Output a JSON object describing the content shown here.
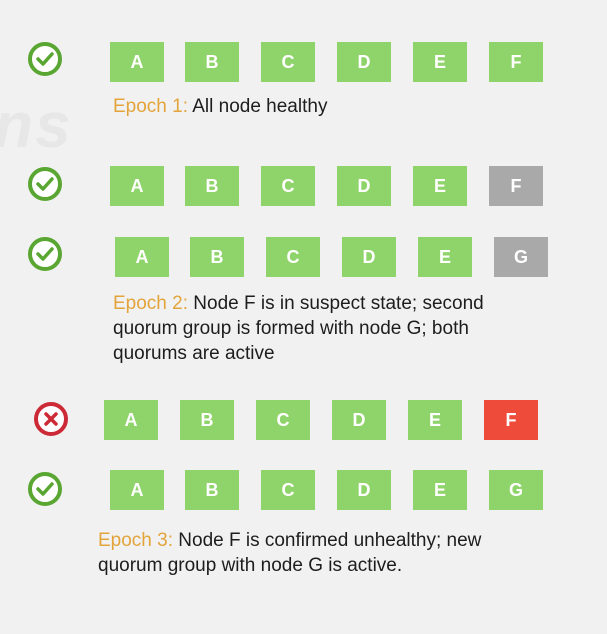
{
  "colors": {
    "healthy": "#8fd46a",
    "suspect": "#a9a9a9",
    "failed": "#ee4b3a",
    "ok_ring": "#5aa632",
    "bad_ring": "#cc2a36",
    "epoch_label": "#e3a43b"
  },
  "rows": [
    {
      "status": "check-circle-icon",
      "nodes": [
        "A",
        "B",
        "C",
        "D",
        "E",
        "F"
      ],
      "states": [
        "healthy",
        "healthy",
        "healthy",
        "healthy",
        "healthy",
        "healthy"
      ]
    },
    {
      "status": "check-circle-icon",
      "nodes": [
        "A",
        "B",
        "C",
        "D",
        "E",
        "F"
      ],
      "states": [
        "healthy",
        "healthy",
        "healthy",
        "healthy",
        "healthy",
        "suspect"
      ]
    },
    {
      "status": "check-circle-icon",
      "nodes": [
        "A",
        "B",
        "C",
        "D",
        "E",
        "G"
      ],
      "states": [
        "healthy",
        "healthy",
        "healthy",
        "healthy",
        "healthy",
        "suspect"
      ]
    },
    {
      "status": "x-circle-icon",
      "nodes": [
        "A",
        "B",
        "C",
        "D",
        "E",
        "F"
      ],
      "states": [
        "healthy",
        "healthy",
        "healthy",
        "healthy",
        "healthy",
        "failed"
      ]
    },
    {
      "status": "check-circle-icon",
      "nodes": [
        "A",
        "B",
        "C",
        "D",
        "E",
        "G"
      ],
      "states": [
        "healthy",
        "healthy",
        "healthy",
        "healthy",
        "healthy",
        "healthy"
      ]
    }
  ],
  "captions": [
    {
      "epoch": "Epoch 1:",
      "lines": [
        "All node healthy"
      ]
    },
    {
      "epoch": "Epoch 2:",
      "lines": [
        "Node F is in suspect state; second",
        "quorum group is formed with node G; both",
        "quorums are active"
      ]
    },
    {
      "epoch": "Epoch 3:",
      "lines": [
        "Node F is confirmed unhealthy; new",
        "quorum group with node G is active."
      ]
    }
  ]
}
